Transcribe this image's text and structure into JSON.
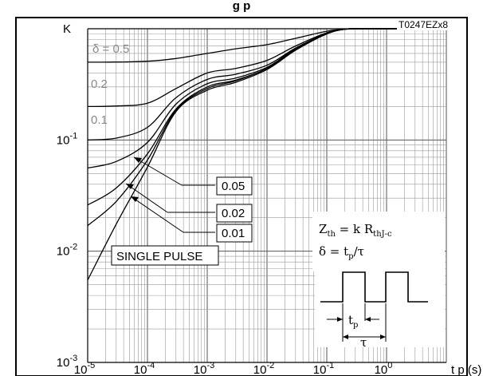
{
  "chart_data": {
    "type": "line",
    "title_partial": "g                        p",
    "figure_code": "T0247EZx8",
    "ylabel": "K",
    "xlabel": "t p (s)",
    "x_scale": "log",
    "y_scale": "log",
    "xlim": [
      1e-05,
      10
    ],
    "ylim": [
      0.001,
      1
    ],
    "grid": true,
    "x_tick_labels": [
      {
        "base": "10",
        "exp": "-5"
      },
      {
        "base": "10",
        "exp": "-4"
      },
      {
        "base": "10",
        "exp": "-3"
      },
      {
        "base": "10",
        "exp": "-2"
      },
      {
        "base": "10",
        "exp": "-1"
      },
      {
        "base": "10",
        "exp": "0"
      }
    ],
    "y_tick_labels": [
      {
        "base": "K",
        "exp": ""
      },
      {
        "base": "10",
        "exp": "-1"
      },
      {
        "base": "10",
        "exp": "-2"
      },
      {
        "base": "10",
        "exp": "-3"
      }
    ],
    "series": [
      {
        "name": "δ = 0.5",
        "color": "#000000",
        "x": [
          1e-05,
          3e-05,
          0.0001,
          0.0003,
          0.001,
          0.003,
          0.01,
          0.03,
          0.1,
          0.2,
          0.4
        ],
        "y": [
          0.5,
          0.502,
          0.51,
          0.54,
          0.6,
          0.66,
          0.72,
          0.82,
          0.95,
          0.99,
          1.0
        ]
      },
      {
        "name": "0.2",
        "color": "#000000",
        "x": [
          1e-05,
          3e-05,
          0.0001,
          0.0003,
          0.001,
          0.003,
          0.01,
          0.03,
          0.1,
          0.2,
          0.4
        ],
        "y": [
          0.2,
          0.202,
          0.214,
          0.29,
          0.4,
          0.44,
          0.52,
          0.7,
          0.92,
          0.99,
          1.0
        ]
      },
      {
        "name": "0.1",
        "color": "#000000",
        "x": [
          1e-05,
          3e-05,
          0.0001,
          0.0003,
          0.001,
          0.003,
          0.01,
          0.03,
          0.1,
          0.2,
          0.4
        ],
        "y": [
          0.1,
          0.104,
          0.13,
          0.24,
          0.35,
          0.39,
          0.47,
          0.67,
          0.91,
          0.99,
          1.0
        ]
      },
      {
        "name": "0.05",
        "color": "#000000",
        "x": [
          1e-05,
          3e-05,
          0.0001,
          0.0003,
          0.001,
          0.003,
          0.01,
          0.03,
          0.1,
          0.2,
          0.4
        ],
        "y": [
          0.056,
          0.064,
          0.095,
          0.21,
          0.32,
          0.36,
          0.45,
          0.66,
          0.9,
          0.99,
          1.0
        ]
      },
      {
        "name": "0.02",
        "color": "#000000",
        "x": [
          1e-05,
          3e-05,
          0.0001,
          0.0003,
          0.001,
          0.003,
          0.01,
          0.03,
          0.1,
          0.2,
          0.4
        ],
        "y": [
          0.026,
          0.037,
          0.075,
          0.19,
          0.3,
          0.345,
          0.44,
          0.65,
          0.9,
          0.99,
          1.0
        ]
      },
      {
        "name": "0.01",
        "color": "#000000",
        "x": [
          1e-05,
          3e-05,
          0.0001,
          0.0003,
          0.001,
          0.003,
          0.01,
          0.03,
          0.1,
          0.2,
          0.4
        ],
        "y": [
          0.017,
          0.028,
          0.066,
          0.185,
          0.29,
          0.34,
          0.44,
          0.65,
          0.9,
          0.99,
          1.0
        ]
      },
      {
        "name": "SINGLE PULSE",
        "color": "#000000",
        "x": [
          1e-05,
          3e-05,
          0.0001,
          0.0003,
          0.001,
          0.003,
          0.01,
          0.03,
          0.1,
          0.2,
          0.4
        ],
        "y": [
          0.0055,
          0.0175,
          0.057,
          0.18,
          0.28,
          0.33,
          0.43,
          0.64,
          0.9,
          0.99,
          1.0
        ]
      }
    ],
    "annotations": {
      "d05": "δ = 0.5",
      "d02": "0.2",
      "d01": "0.1",
      "d005": "0.05",
      "d002": "0.02",
      "d001": "0.01",
      "single_pulse": "SINGLE PULSE",
      "formula_z": {
        "main": "Z",
        "sub1": "th",
        "eq": " = k R",
        "sub2": "thJ-c"
      },
      "formula_delta": {
        "lhs": "δ = t",
        "sub": "p",
        "rhs": "/τ"
      },
      "pulse_tp": {
        "main": "t",
        "sub": "p"
      },
      "pulse_tau": "τ"
    }
  }
}
